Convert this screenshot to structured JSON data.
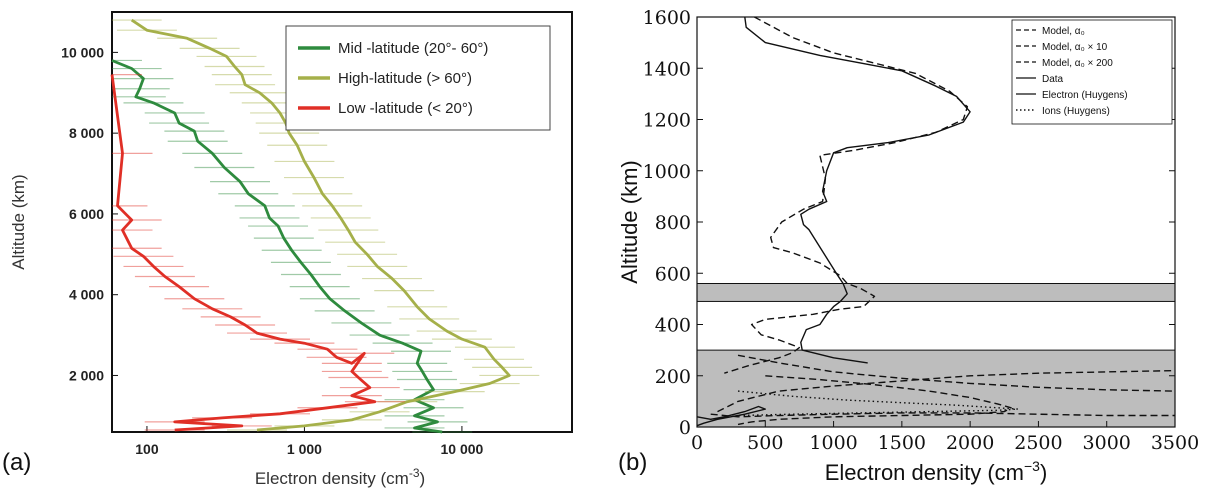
{
  "chart_data": [
    {
      "panel_label": "(a)",
      "type": "line",
      "xlabel": "Electron density (cm",
      "xlabel_sup": "-3",
      "xlabel_close": ")",
      "ylabel": "Altitude (km)",
      "xscale": "log",
      "xlim": [
        60,
        50000
      ],
      "ylim": [
        600,
        11000
      ],
      "xticks": [
        {
          "v": 100,
          "label": "100"
        },
        {
          "v": 1000,
          "label": "1 000"
        },
        {
          "v": 10000,
          "label": "10 000"
        }
      ],
      "yticks": [
        {
          "v": 2000,
          "label": "2 000"
        },
        {
          "v": 4000,
          "label": "4 000"
        },
        {
          "v": 6000,
          "label": "6 000"
        },
        {
          "v": 8000,
          "label": "8 000"
        },
        {
          "v": 10000,
          "label": "10 000"
        }
      ],
      "legend_position": "top-right",
      "series": [
        {
          "name": "Mid -latitude (20°- 60°)",
          "color": "#2e8b3e",
          "points": [
            [
              60,
              9800
            ],
            [
              80,
              9600
            ],
            [
              95,
              9350
            ],
            [
              90,
              9100
            ],
            [
              85,
              8900
            ],
            [
              110,
              8750
            ],
            [
              150,
              8500
            ],
            [
              160,
              8250
            ],
            [
              200,
              8050
            ],
            [
              210,
              7800
            ],
            [
              260,
              7500
            ],
            [
              310,
              7150
            ],
            [
              390,
              6800
            ],
            [
              440,
              6500
            ],
            [
              560,
              6200
            ],
            [
              600,
              5900
            ],
            [
              680,
              5700
            ],
            [
              740,
              5400
            ],
            [
              830,
              5100
            ],
            [
              950,
              4800
            ],
            [
              1100,
              4500
            ],
            [
              1250,
              4200
            ],
            [
              1450,
              3900
            ],
            [
              1800,
              3600
            ],
            [
              2300,
              3300
            ],
            [
              3000,
              3000
            ],
            [
              4200,
              2800
            ],
            [
              5500,
              2600
            ],
            [
              5200,
              2300
            ],
            [
              5600,
              2100
            ],
            [
              6000,
              1900
            ],
            [
              6600,
              1650
            ],
            [
              5000,
              1400
            ],
            [
              6600,
              1200
            ],
            [
              5000,
              1000
            ],
            [
              7000,
              850
            ],
            [
              5000,
              700
            ],
            [
              7500,
              600
            ]
          ]
        },
        {
          "name": "High-latitude (> 60°)",
          "color": "#a5b04a",
          "points": [
            [
              80,
              10800
            ],
            [
              100,
              10550
            ],
            [
              180,
              10350
            ],
            [
              250,
              10100
            ],
            [
              320,
              9900
            ],
            [
              360,
              9650
            ],
            [
              400,
              9450
            ],
            [
              420,
              9200
            ],
            [
              520,
              9000
            ],
            [
              620,
              8750
            ],
            [
              700,
              8500
            ],
            [
              760,
              8250
            ],
            [
              800,
              8000
            ],
            [
              900,
              7700
            ],
            [
              1000,
              7300
            ],
            [
              1150,
              6900
            ],
            [
              1300,
              6500
            ],
            [
              1500,
              6200
            ],
            [
              1700,
              5900
            ],
            [
              1900,
              5600
            ],
            [
              2100,
              5300
            ],
            [
              2500,
              5000
            ],
            [
              2900,
              4700
            ],
            [
              3600,
              4400
            ],
            [
              4300,
              4100
            ],
            [
              5200,
              3700
            ],
            [
              6200,
              3400
            ],
            [
              8000,
              3100
            ],
            [
              10000,
              2900
            ],
            [
              14000,
              2700
            ],
            [
              16000,
              2400
            ],
            [
              18000,
              2200
            ],
            [
              20000,
              2000
            ],
            [
              15000,
              1800
            ],
            [
              9000,
              1600
            ],
            [
              4500,
              1350
            ],
            [
              3000,
              1100
            ],
            [
              2000,
              900
            ],
            [
              1000,
              750
            ],
            [
              500,
              650
            ]
          ]
        },
        {
          "name": "Low -latitude (< 20°)",
          "color": "#e02f26",
          "points": [
            [
              60,
              9450
            ],
            [
              70,
              7500
            ],
            [
              65,
              6200
            ],
            [
              80,
              5850
            ],
            [
              70,
              5600
            ],
            [
              80,
              5150
            ],
            [
              95,
              4950
            ],
            [
              110,
              4700
            ],
            [
              130,
              4450
            ],
            [
              160,
              4200
            ],
            [
              200,
              3900
            ],
            [
              260,
              3650
            ],
            [
              340,
              3450
            ],
            [
              420,
              3250
            ],
            [
              500,
              3050
            ],
            [
              700,
              2900
            ],
            [
              1000,
              2800
            ],
            [
              1400,
              2650
            ],
            [
              1600,
              2450
            ],
            [
              2000,
              2300
            ],
            [
              2400,
              2550
            ],
            [
              2000,
              2100
            ],
            [
              2200,
              1950
            ],
            [
              2600,
              1700
            ],
            [
              2000,
              1500
            ],
            [
              2800,
              1350
            ],
            [
              1400,
              1200
            ],
            [
              700,
              1050
            ],
            [
              300,
              950
            ],
            [
              150,
              850
            ],
            [
              400,
              750
            ],
            [
              150,
              650
            ]
          ]
        }
      ]
    },
    {
      "panel_label": "(b)",
      "type": "line",
      "xlabel": "Electron density (cm",
      "xlabel_sup": "−3",
      "xlabel_close": ")",
      "ylabel": "Altitude (km)",
      "xlim": [
        0,
        3500
      ],
      "ylim": [
        0,
        1600
      ],
      "xticks": [
        0,
        500,
        1000,
        1500,
        2000,
        2500,
        3000,
        3500
      ],
      "yticks": [
        0,
        200,
        400,
        600,
        800,
        1000,
        1200,
        1400,
        1600
      ],
      "shaded_bands": [
        [
          490,
          560
        ],
        [
          0,
          300
        ]
      ],
      "legend_position": "top-right",
      "legend": [
        {
          "label": "Model, α₀",
          "style": "dashed"
        },
        {
          "label": "Model, α₀ × 10",
          "style": "dashed"
        },
        {
          "label": "Model, α₀ × 200",
          "style": "dashed"
        },
        {
          "label": "Data",
          "style": "solid"
        },
        {
          "label": "Electron (Huygens)",
          "style": "solid"
        },
        {
          "label": "Ions (Huygens)",
          "style": "dotted"
        }
      ],
      "series": [
        {
          "style": "solid",
          "points": [
            [
              350,
              1600
            ],
            [
              360,
              1560
            ],
            [
              500,
              1500
            ],
            [
              900,
              1450
            ],
            [
              1200,
              1420
            ],
            [
              1500,
              1390
            ],
            [
              1750,
              1330
            ],
            [
              1900,
              1290
            ],
            [
              2000,
              1230
            ],
            [
              1950,
              1190
            ],
            [
              1700,
              1140
            ],
            [
              1400,
              1110
            ],
            [
              1100,
              1090
            ],
            [
              1000,
              1070
            ],
            [
              950,
              1000
            ],
            [
              920,
              920
            ],
            [
              950,
              880
            ],
            [
              820,
              850
            ],
            [
              760,
              830
            ],
            [
              780,
              790
            ],
            [
              820,
              770
            ],
            [
              1020,
              600
            ],
            [
              1070,
              560
            ],
            [
              1100,
              520
            ],
            [
              1050,
              490
            ],
            [
              1000,
              470
            ],
            [
              950,
              440
            ],
            [
              900,
              400
            ],
            [
              800,
              380
            ],
            [
              760,
              330
            ],
            [
              770,
              300
            ],
            [
              1000,
              270
            ],
            [
              1250,
              250
            ]
          ]
        },
        {
          "style": "dashed",
          "points": [
            [
              420,
              1600
            ],
            [
              700,
              1520
            ],
            [
              1000,
              1460
            ],
            [
              1300,
              1420
            ],
            [
              1600,
              1380
            ],
            [
              1850,
              1310
            ],
            [
              1980,
              1250
            ],
            [
              1950,
              1200
            ],
            [
              1750,
              1150
            ],
            [
              1450,
              1110
            ],
            [
              1150,
              1080
            ],
            [
              900,
              1060
            ],
            [
              940,
              970
            ],
            [
              930,
              920
            ],
            [
              920,
              880
            ],
            [
              780,
              850
            ],
            [
              620,
              800
            ],
            [
              540,
              740
            ],
            [
              560,
              700
            ],
            [
              700,
              680
            ],
            [
              900,
              640
            ],
            [
              1050,
              590
            ],
            [
              1100,
              560
            ],
            [
              1200,
              540
            ],
            [
              1300,
              510
            ],
            [
              1220,
              470
            ],
            [
              1050,
              460
            ],
            [
              850,
              440
            ],
            [
              500,
              420
            ],
            [
              400,
              400
            ],
            [
              470,
              360
            ],
            [
              600,
              340
            ],
            [
              750,
              310
            ],
            [
              700,
              290
            ],
            [
              600,
              270
            ],
            [
              380,
              240
            ],
            [
              200,
              210
            ]
          ]
        },
        {
          "style": "dashed",
          "points": [
            [
              100,
              50
            ],
            [
              300,
              40
            ],
            [
              600,
              45
            ],
            [
              1000,
              50
            ],
            [
              1500,
              55
            ],
            [
              2000,
              55
            ],
            [
              2500,
              50
            ],
            [
              3000,
              45
            ],
            [
              3500,
              45
            ]
          ]
        },
        {
          "style": "dashed",
          "points": [
            [
              300,
              280
            ],
            [
              600,
              250
            ],
            [
              1000,
              215
            ],
            [
              1500,
              190
            ],
            [
              2000,
              170
            ],
            [
              2500,
              155
            ],
            [
              3000,
              145
            ],
            [
              3500,
              140
            ]
          ]
        },
        {
          "style": "dashed",
          "points": [
            [
              150,
              60
            ],
            [
              300,
              100
            ],
            [
              600,
              140
            ],
            [
              1000,
              160
            ],
            [
              1500,
              180
            ],
            [
              2000,
              200
            ],
            [
              2500,
              210
            ],
            [
              3000,
              215
            ],
            [
              3500,
              220
            ]
          ]
        },
        {
          "style": "dashed",
          "points": [
            [
              500,
              200
            ],
            [
              900,
              185
            ],
            [
              1300,
              165
            ],
            [
              1700,
              140
            ],
            [
              2000,
              115
            ],
            [
              2200,
              90
            ],
            [
              2300,
              75
            ],
            [
              2250,
              60
            ],
            [
              2000,
              50
            ],
            [
              1500,
              45
            ],
            [
              1000,
              40
            ],
            [
              600,
              30
            ],
            [
              400,
              20
            ],
            [
              300,
              10
            ]
          ]
        },
        {
          "style": "solid",
          "points": [
            [
              0,
              40
            ],
            [
              100,
              30
            ],
            [
              200,
              40
            ],
            [
              350,
              60
            ],
            [
              450,
              80
            ],
            [
              500,
              70
            ],
            [
              350,
              50
            ],
            [
              150,
              30
            ],
            [
              50,
              15
            ],
            [
              0,
              5
            ]
          ]
        },
        {
          "style": "dotted",
          "points": [
            [
              300,
              140
            ],
            [
              700,
              120
            ],
            [
              1100,
              105
            ],
            [
              1500,
              95
            ],
            [
              1900,
              85
            ],
            [
              2200,
              75
            ],
            [
              2350,
              70
            ],
            [
              2200,
              65
            ],
            [
              1700,
              60
            ],
            [
              1200,
              55
            ],
            [
              700,
              50
            ],
            [
              300,
              45
            ]
          ]
        }
      ]
    }
  ]
}
